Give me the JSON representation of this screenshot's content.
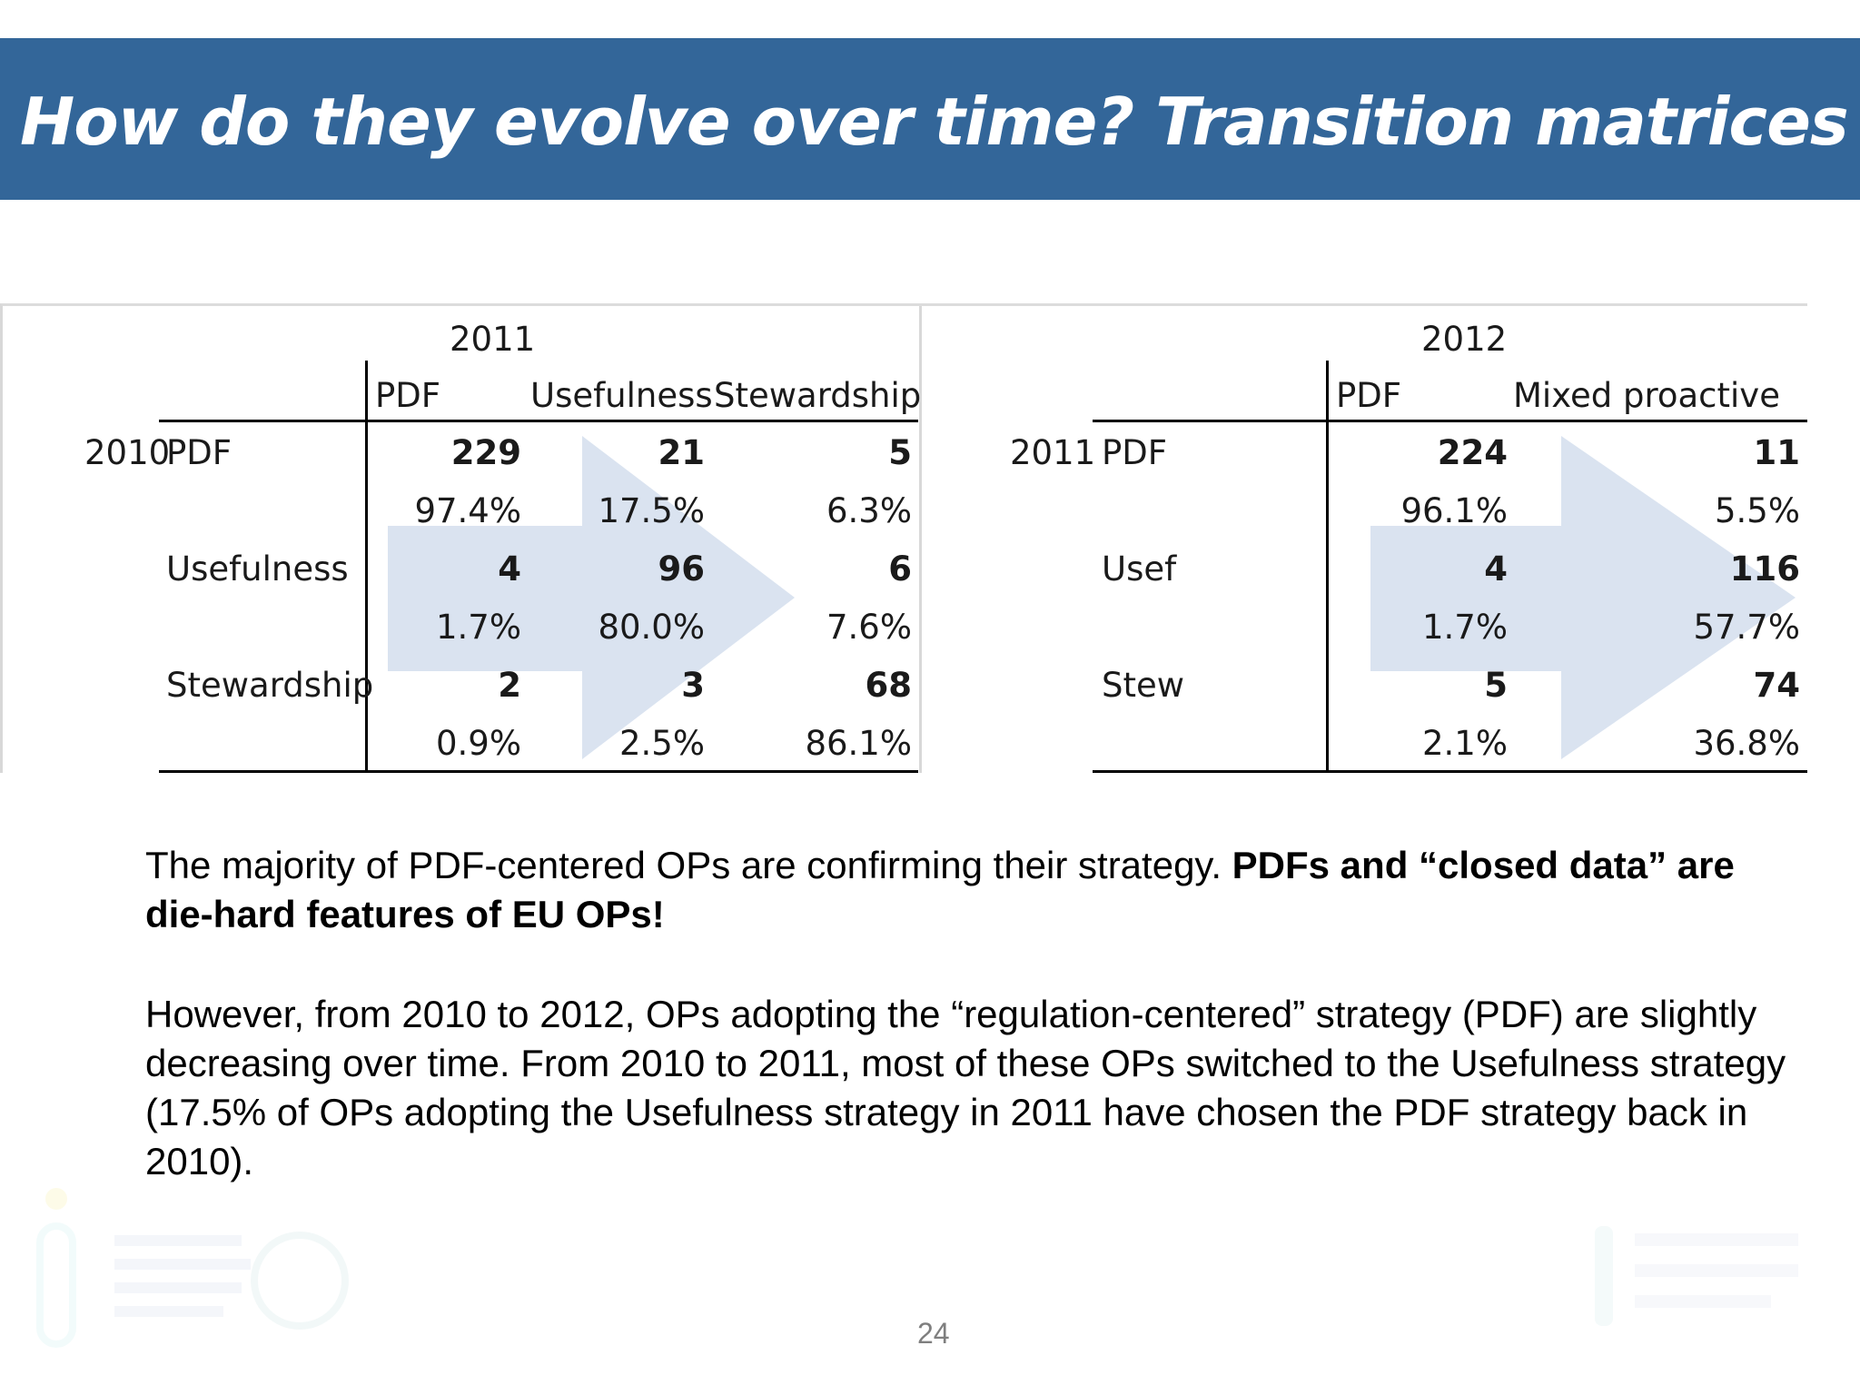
{
  "slide": {
    "title": "How do they evolve over time? Transition matrices",
    "page_number": "24"
  },
  "colors": {
    "title_bar": "#336699",
    "arrow_fill": "#dae3f0"
  },
  "tables": [
    {
      "column_year": "2011",
      "columns": [
        "PDF",
        "Usefulness",
        "Stewardship"
      ],
      "row_year": "2010",
      "rows": [
        {
          "label": "PDF",
          "counts": [
            "229",
            "21",
            "5"
          ],
          "shares": [
            "97.4%",
            "17.5%",
            "6.3%"
          ]
        },
        {
          "label": "Usefulness",
          "counts": [
            "4",
            "96",
            "6"
          ],
          "shares": [
            "1.7%",
            "80.0%",
            "7.6%"
          ]
        },
        {
          "label": "Stewardship",
          "counts": [
            "2",
            "3",
            "68"
          ],
          "shares": [
            "0.9%",
            "2.5%",
            "86.1%"
          ]
        }
      ],
      "bold_counts": [
        [
          0,
          0
        ],
        [
          0,
          1
        ],
        [
          0,
          2
        ],
        [
          1,
          0
        ],
        [
          1,
          1
        ],
        [
          1,
          2
        ],
        [
          2,
          0
        ],
        [
          2,
          1
        ],
        [
          2,
          2
        ]
      ]
    },
    {
      "column_year": "2012",
      "columns": [
        "PDF",
        "Mixed proactive"
      ],
      "row_year": "2011",
      "rows": [
        {
          "label": "PDF",
          "counts": [
            "224",
            "11"
          ],
          "shares": [
            "96.1%",
            "5.5%"
          ]
        },
        {
          "label": "Usef",
          "counts": [
            "4",
            "116"
          ],
          "shares": [
            "1.7%",
            "57.7%"
          ]
        },
        {
          "label": "Stew",
          "counts": [
            "5",
            "74"
          ],
          "shares": [
            "2.1%",
            "36.8%"
          ]
        }
      ]
    }
  ],
  "text": {
    "p1_normal": "The majority of PDF-centered OPs are confirming their strategy. ",
    "p1_bold": "PDFs and “closed data” are die-hard features of EU OPs!",
    "p2": "However, from 2010 to 2012, OPs adopting the “regulation-centered” strategy (PDF) are slightly decreasing over time. From 2010 to 2011, most of these OPs switched to the Usefulness strategy (17.5% of OPs adopting the Usefulness strategy in 2011 have chosen the PDF strategy back in 2010)."
  }
}
